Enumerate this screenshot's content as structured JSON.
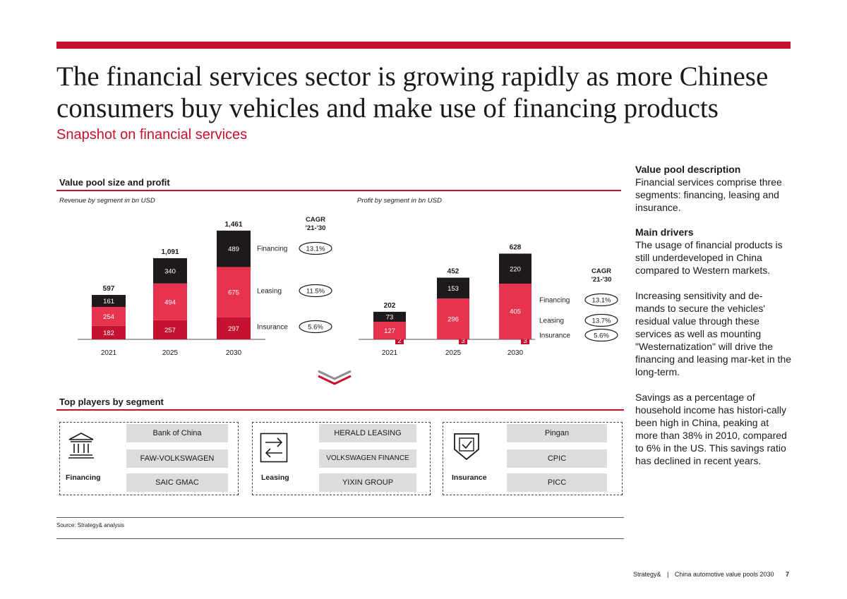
{
  "title": "The financial services sector is growing rapidly as more Chinese consumers buy vehicles and make use of financing products",
  "subtitle": "Snapshot on financial services",
  "value_pool": {
    "heading": "Value pool size and profit",
    "revenue_caption": "Revenue by segment in bn USD",
    "profit_caption": "Profit by segment in bn USD"
  },
  "colors": {
    "accent": "#c8102e",
    "financing": "#1e1a1c",
    "leasing": "#e8334f",
    "insurance": "#c41230"
  },
  "chart_data": [
    {
      "type": "bar",
      "title": "Revenue by segment in bn USD",
      "categories": [
        "2021",
        "2025",
        "2030"
      ],
      "series": [
        {
          "name": "Insurance",
          "values": [
            182,
            257,
            297
          ]
        },
        {
          "name": "Leasing",
          "values": [
            254,
            494,
            675
          ]
        },
        {
          "name": "Financing",
          "values": [
            161,
            340,
            489
          ]
        }
      ],
      "totals": [
        "597",
        "1,091",
        "1,461"
      ],
      "cagr_header": [
        "CAGR",
        "'21-'30"
      ],
      "cagr": {
        "Financing": "13.1%",
        "Leasing": "11.5%",
        "Insurance": "5.6%"
      }
    },
    {
      "type": "bar",
      "title": "Profit by segment in bn USD",
      "categories": [
        "2021",
        "2025",
        "2030"
      ],
      "series": [
        {
          "name": "Insurance",
          "values": [
            2,
            3,
            3
          ]
        },
        {
          "name": "Leasing",
          "values": [
            127,
            296,
            405
          ]
        },
        {
          "name": "Financing",
          "values": [
            73,
            153,
            220
          ]
        }
      ],
      "totals": [
        "202",
        "452",
        "628"
      ],
      "cagr_header": [
        "CAGR",
        "'21-'30"
      ],
      "cagr": {
        "Financing": "13.1%",
        "Leasing": "13.7%",
        "Insurance": "5.6%"
      }
    }
  ],
  "players": {
    "heading": "Top players by segment",
    "segments": [
      {
        "label": "Financing",
        "icon": "bank-icon",
        "players": [
          "Bank of China",
          "FAW-VOLKSWAGEN",
          "SAIC GMAC"
        ]
      },
      {
        "label": "Leasing",
        "icon": "exchange-arrows-icon",
        "players": [
          "HERALD LEASING",
          "VOLKSWAGEN FINANCE",
          "YIXIN GROUP"
        ]
      },
      {
        "label": "Insurance",
        "icon": "shield-check-icon",
        "players": [
          "Pingan",
          "CPIC",
          "PICC"
        ]
      }
    ]
  },
  "sidebar": {
    "desc_heading": "Value pool description",
    "desc_text": "Financial services comprise three segments: financing, leasing and insurance.",
    "drivers_heading": "Main drivers",
    "drivers_p1": "The usage of financial products is still underdeveloped in China compared to Western markets.",
    "drivers_p2": "Increasing sensitivity and de-mands to secure the vehicles' residual value through these services as well as mounting \"Westernatization\" will drive the financing and leasing mar-ket in the long-term.",
    "drivers_p3": "Savings as a percentage of household income has histori-cally been high in China, peaking at more than 38% in 2010, compared to 6% in the US. This savings ratio has declined in recent years."
  },
  "source": "Source: Strategy& analysis",
  "footer": {
    "brand": "Strategy&",
    "separator": "|",
    "doc": "China automotive value pools 2030",
    "page": "7"
  }
}
